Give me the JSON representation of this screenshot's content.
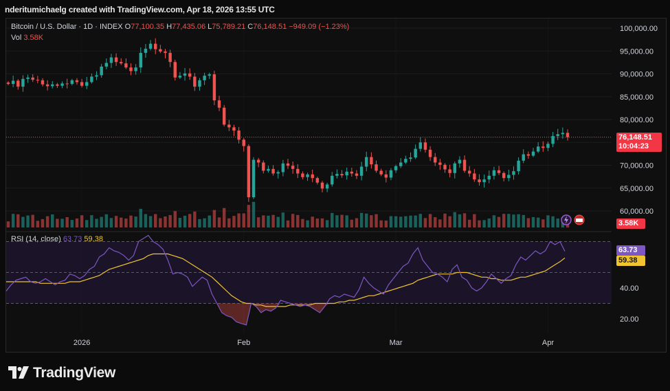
{
  "header": {
    "credit": "nderitumichaelg created with TradingView.com, Apr 18, 2026 13:55 UTC"
  },
  "legend": {
    "symbol": "Bitcoin / U.S. Dollar · 1D · INDEX",
    "open_label": "O",
    "open": "77,100.35",
    "high_label": "H",
    "high": "77,435.06",
    "low_label": "L",
    "low": "75,789.21",
    "close_label": "C",
    "close": "76,148.51",
    "change": "−949.09 (−1.23%)",
    "vol_label": "Vol",
    "vol": "3.58K"
  },
  "price_tag": {
    "price": "76,148.51",
    "countdown": "10:04:23"
  },
  "volume_tag": "3.58K",
  "rsi": {
    "label": "RSI (14, close)",
    "value": "63.73",
    "ma": "59.38"
  },
  "brand": {
    "name": "TradingView"
  },
  "colors": {
    "up": "#26a69a",
    "down": "#ef5350",
    "rsi": "#7e57c2",
    "rsi_ma": "#f0c330",
    "rsi_band": "#1e1530"
  },
  "chart_data": [
    {
      "type": "candlestick",
      "title": "Bitcoin / U.S. Dollar · 1D · INDEX",
      "x_labels": [
        "2026",
        "Feb",
        "Mar",
        "Apr"
      ],
      "y_ticks": [
        "100,000.00",
        "95,000.00",
        "90,000.00",
        "85,000.00",
        "80,000.00",
        "75,000.00",
        "70,000.00",
        "65,000.00",
        "60,000.00"
      ],
      "ylim": [
        57500,
        101000
      ],
      "last_price": 76148.51,
      "close_path": [
        87800,
        88500,
        87200,
        88900,
        89200,
        88700,
        88600,
        87700,
        87300,
        87700,
        87400,
        87900,
        87800,
        88600,
        88200,
        87400,
        88200,
        89400,
        89700,
        91600,
        92400,
        93600,
        92600,
        92300,
        91400,
        90600,
        91400,
        94600,
        95500,
        96600,
        95400,
        94900,
        94600,
        92600,
        89200,
        89600,
        90100,
        89400,
        87200,
        88600,
        89600,
        89900,
        84200,
        82600,
        78900,
        78300,
        77600,
        75600,
        74200,
        63000,
        71200,
        70600,
        68800,
        69200,
        68200,
        68500,
        70400,
        69900,
        69200,
        68200,
        67400,
        68000,
        67200,
        66200,
        64900,
        65800,
        67700,
        68100,
        67800,
        68600,
        68200,
        67700,
        69700,
        71800,
        70200,
        68800,
        68000,
        67300,
        68900,
        69800,
        70600,
        71400,
        71700,
        73600,
        75000,
        73400,
        71800,
        70600,
        70100,
        69100,
        68300,
        70400,
        71200,
        68800,
        68200,
        66900,
        66300,
        66900,
        67700,
        68900,
        68300,
        67200,
        67900,
        68700,
        71000,
        72400,
        72100,
        73000,
        74100,
        73800,
        74700,
        76400,
        76800,
        77100,
        76150
      ],
      "volume_tag": "3.58K"
    },
    {
      "type": "line",
      "title": "RSI (14, close)",
      "y_ticks": [
        "40.00",
        "20.00"
      ],
      "ylim": [
        13,
        88
      ],
      "bands": [
        70,
        50,
        30
      ],
      "series": [
        {
          "name": "RSI",
          "values": [
            38,
            42,
            45,
            46,
            47,
            44,
            43,
            44,
            46,
            44,
            42,
            44,
            45,
            49,
            48,
            46,
            48,
            52,
            54,
            60,
            62,
            66,
            64,
            63,
            61,
            58,
            61,
            70,
            72,
            74,
            70,
            68,
            65,
            58,
            49,
            50,
            49,
            47,
            41,
            44,
            47,
            45,
            36,
            30,
            24,
            22,
            21,
            18,
            17,
            16,
            30,
            28,
            24,
            26,
            25,
            27,
            32,
            31,
            30,
            29,
            28,
            29,
            28,
            26,
            24,
            28,
            33,
            35,
            34,
            36,
            35,
            34,
            39,
            47,
            43,
            40,
            38,
            36,
            42,
            46,
            50,
            54,
            56,
            62,
            66,
            58,
            54,
            50,
            49,
            47,
            44,
            52,
            55,
            47,
            45,
            40,
            38,
            40,
            44,
            49,
            46,
            43,
            46,
            48,
            55,
            60,
            58,
            61,
            64,
            62,
            64,
            70,
            68,
            70,
            63.73
          ]
        },
        {
          "name": "RSI-based MA",
          "values": [
            44,
            44,
            44,
            44,
            44,
            44,
            44,
            43,
            43,
            43,
            43,
            43,
            43,
            44,
            44,
            44,
            45,
            46,
            47,
            48,
            50,
            52,
            53,
            54,
            55,
            56,
            57,
            58,
            59,
            61,
            62,
            62,
            62,
            62,
            61,
            60,
            59,
            57,
            55,
            53,
            51,
            49,
            47,
            44,
            41,
            38,
            35,
            33,
            31,
            30,
            30,
            29,
            29,
            28,
            28,
            28,
            28,
            28,
            29,
            29,
            29,
            29,
            29,
            30,
            30,
            30,
            30,
            30,
            31,
            31,
            32,
            32,
            33,
            34,
            35,
            35,
            36,
            37,
            38,
            39,
            40,
            41,
            42,
            43,
            45,
            46,
            47,
            48,
            49,
            49,
            49,
            49,
            50,
            50,
            50,
            49,
            48,
            47,
            47,
            46,
            46,
            45,
            45,
            45,
            46,
            47,
            47,
            48,
            49,
            50,
            51,
            53,
            55,
            57,
            59.38
          ]
        }
      ]
    }
  ]
}
